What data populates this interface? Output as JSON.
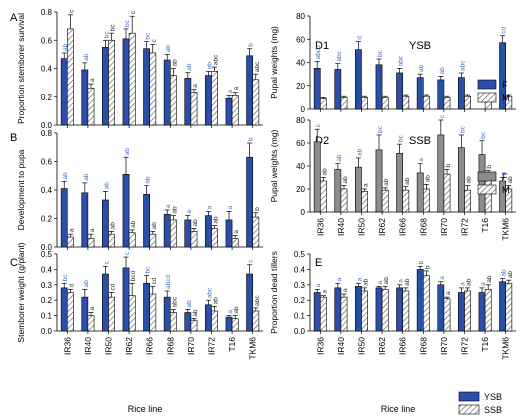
{
  "categories": [
    "IR36",
    "IR40",
    "IR50",
    "IR62",
    "IR66",
    "IR68",
    "IR70",
    "IR72",
    "T16",
    "TKM6"
  ],
  "colors": {
    "blue": "#2a4fa8",
    "gray": "#8c8c8c",
    "letter": "#4a74c4",
    "axis": "#000000"
  },
  "x_axis_label": "Rice line",
  "legend_bottom": {
    "items": [
      "YSB",
      "SSB"
    ],
    "placement": "bottom-right"
  },
  "chart_data": [
    {
      "id": "A",
      "type": "bar",
      "panel_label": "A",
      "ylabel": "Proportion stemborer survival",
      "ylim": [
        0,
        0.8
      ],
      "yticks": [
        "0.0",
        "0.2",
        "0.4",
        "0.6",
        "0.8"
      ],
      "tick_values": [
        0,
        0.2,
        0.4,
        0.6,
        0.8
      ],
      "series": [
        {
          "name": "YSB",
          "pattern": "solid",
          "color": "#2a4fa8",
          "values": [
            0.47,
            0.39,
            0.55,
            0.61,
            0.54,
            0.46,
            0.33,
            0.35,
            0.19,
            0.49
          ],
          "errors": [
            0.04,
            0.05,
            0.05,
            0.07,
            0.05,
            0.04,
            0.04,
            0.03,
            0.02,
            0.05
          ],
          "letters": [
            "ab",
            "ab",
            "bc",
            "bc",
            "bc",
            "ab",
            "ab",
            "ab",
            "a",
            "b"
          ]
        },
        {
          "name": "SSB",
          "pattern": "hatch",
          "values": [
            0.68,
            0.26,
            0.6,
            0.65,
            0.51,
            0.35,
            0.23,
            0.38,
            0.21,
            0.32
          ],
          "errors": [
            0.1,
            0.03,
            0.05,
            0.12,
            0.06,
            0.05,
            0.02,
            0.03,
            0.02,
            0.04
          ],
          "letters": [
            "c",
            "a",
            "bc",
            "c",
            "c",
            "ab",
            "a",
            "abc",
            "a",
            "abc"
          ]
        }
      ]
    },
    {
      "id": "B",
      "type": "bar",
      "panel_label": "B",
      "ylabel": "Development to pupa",
      "ylim": [
        0,
        0.8
      ],
      "yticks": [
        "0.0",
        "0.2",
        "0.4",
        "0.6",
        "0.8"
      ],
      "tick_values": [
        0,
        0.2,
        0.4,
        0.6,
        0.8
      ],
      "series": [
        {
          "name": "YSB",
          "pattern": "solid",
          "color": "#2a4fa8",
          "values": [
            0.41,
            0.38,
            0.33,
            0.51,
            0.37,
            0.23,
            0.19,
            0.22,
            0.19,
            0.63
          ],
          "errors": [
            0.05,
            0.07,
            0.06,
            0.12,
            0.06,
            0.03,
            0.03,
            0.03,
            0.06,
            0.1
          ],
          "letters": [
            "ab",
            "ab",
            "ab",
            "ab",
            "ab",
            "a",
            "a",
            "a",
            "a",
            "b"
          ]
        },
        {
          "name": "SSB",
          "pattern": "hatch",
          "values": [
            0.07,
            0.06,
            0.09,
            0.1,
            0.09,
            0.19,
            0.11,
            0.13,
            0.06,
            0.21
          ],
          "errors": [
            0.02,
            0.03,
            0.02,
            0.02,
            0.02,
            0.03,
            0.02,
            0.02,
            0.02,
            0.03
          ],
          "letters": [
            "a",
            "a",
            "ab",
            "ab",
            "ab",
            "ab",
            "ab",
            "ab",
            "a",
            "b"
          ]
        }
      ]
    },
    {
      "id": "C",
      "type": "bar",
      "panel_label": "C",
      "ylabel": "Stemborer weight (g/plant)",
      "ylim": [
        0,
        0.5
      ],
      "yticks": [
        "0.0",
        "0.1",
        "0.2",
        "0.3",
        "0.4",
        "0.5"
      ],
      "tick_values": [
        0,
        0.1,
        0.2,
        0.3,
        0.4,
        0.5
      ],
      "series": [
        {
          "name": "YSB",
          "pattern": "solid",
          "color": "#2a4fa8",
          "values": [
            0.28,
            0.22,
            0.37,
            0.41,
            0.31,
            0.22,
            0.12,
            0.17,
            0.09,
            0.37
          ],
          "errors": [
            0.03,
            0.05,
            0.05,
            0.07,
            0.05,
            0.04,
            0.02,
            0.03,
            0.01,
            0.06
          ],
          "letters": [
            "bc",
            "ab",
            "c",
            "c",
            "bc",
            "abcd",
            "ab",
            "abc",
            "a",
            "c"
          ]
        },
        {
          "name": "SSB",
          "pattern": "hatch",
          "values": [
            0.25,
            0.1,
            0.22,
            0.23,
            0.24,
            0.12,
            0.07,
            0.13,
            0.08,
            0.13
          ],
          "errors": [
            0.02,
            0.02,
            0.03,
            0.08,
            0.05,
            0.02,
            0.01,
            0.03,
            0.02,
            0.02
          ],
          "letters": [
            "d",
            "a",
            "cd",
            "bcd",
            "cd",
            "abc",
            "ab",
            "ab",
            "ab",
            "abc"
          ]
        }
      ]
    },
    {
      "id": "D1",
      "type": "bar",
      "panel_label": "D1",
      "panel_title": "YSB",
      "ylabel": "Pupal weights (mg)",
      "ylim": [
        0,
        80
      ],
      "yticks": [
        "0",
        "20",
        "40",
        "60",
        "80"
      ],
      "tick_values": [
        0,
        20,
        40,
        60,
        80
      ],
      "series": [
        {
          "name": "F",
          "pattern": "solid",
          "color": "#2a4fa8",
          "values": [
            35,
            34,
            51,
            38,
            31,
            27,
            25,
            27,
            0,
            57
          ],
          "errors": [
            6,
            5,
            7,
            5,
            4,
            3,
            3,
            4,
            0,
            6
          ],
          "letters": [
            "abcd",
            "abc",
            "d",
            "bc",
            "abc",
            "ab",
            "ab",
            "abc",
            "",
            "cd"
          ]
        },
        {
          "name": "M",
          "pattern": "hatch",
          "values": [
            9,
            10,
            10,
            10,
            11,
            11,
            10,
            11,
            8,
            11
          ],
          "errors": [
            1,
            1,
            1,
            1,
            1,
            1,
            1,
            1,
            1,
            1
          ],
          "letters": [
            "",
            "",
            "",
            "",
            "",
            "",
            "",
            "",
            "a",
            ""
          ]
        }
      ]
    },
    {
      "id": "D2",
      "type": "bar",
      "panel_label": "D2",
      "panel_title": "SSB",
      "ylabel": "Pupal weights (mg)",
      "ylim": [
        0,
        80
      ],
      "yticks": [
        "0",
        "20",
        "40",
        "60",
        "80"
      ],
      "tick_values": [
        0,
        20,
        40,
        60,
        80
      ],
      "series": [
        {
          "name": "F",
          "pattern": "solid",
          "color": "#8c8c8c",
          "values": [
            61,
            37,
            39,
            54,
            51,
            34,
            67,
            56,
            50,
            27
          ],
          "errors": [
            11,
            5,
            8,
            13,
            8,
            8,
            13,
            11,
            12,
            3
          ],
          "letters": [
            "c",
            "ab",
            "ab",
            "bc",
            "bc",
            "a",
            "c",
            "bc",
            "bc",
            "a"
          ]
        },
        {
          "name": "M",
          "pattern": "hatch",
          "values": [
            27,
            20,
            18,
            19,
            19,
            20,
            33,
            19,
            32,
            20
          ],
          "errors": [
            3,
            3,
            2,
            2,
            3,
            4,
            4,
            4,
            4,
            3
          ],
          "letters": [
            "ab",
            "ab",
            "a",
            "ab",
            "ab",
            "ab",
            "b",
            "ab",
            "b",
            "ab"
          ]
        }
      ]
    },
    {
      "id": "E",
      "type": "bar",
      "panel_label": "E",
      "ylabel": "Proportion dead tillers",
      "ylim": [
        0,
        0.5
      ],
      "yticks": [
        "0.0",
        "0.1",
        "0.2",
        "0.3",
        "0.4",
        "0.5"
      ],
      "tick_values": [
        0,
        0.1,
        0.2,
        0.3,
        0.4,
        0.5
      ],
      "series": [
        {
          "name": "YSB",
          "pattern": "solid",
          "color": "#2a4fa8",
          "values": [
            0.25,
            0.28,
            0.29,
            0.28,
            0.28,
            0.4,
            0.3,
            0.25,
            0.25,
            0.32
          ],
          "errors": [
            0.02,
            0.03,
            0.02,
            0.01,
            0.02,
            0.02,
            0.02,
            0.03,
            0.03,
            0.02
          ],
          "letters": [
            "a",
            "a",
            "a",
            "a",
            "a",
            "b",
            "a",
            "a",
            "a",
            "ab"
          ]
        },
        {
          "name": "SSB",
          "pattern": "hatch",
          "values": [
            0.22,
            0.22,
            0.26,
            0.27,
            0.26,
            0.36,
            0.21,
            0.26,
            0.27,
            0.31
          ],
          "errors": [
            0.01,
            0.02,
            0.02,
            0.02,
            0.02,
            0.03,
            0.01,
            0.02,
            0.03,
            0.02
          ],
          "letters": [
            "a",
            "a",
            "ab",
            "ab",
            "ab",
            "b",
            "a",
            "ab",
            "ab",
            "ab"
          ]
        }
      ]
    }
  ]
}
